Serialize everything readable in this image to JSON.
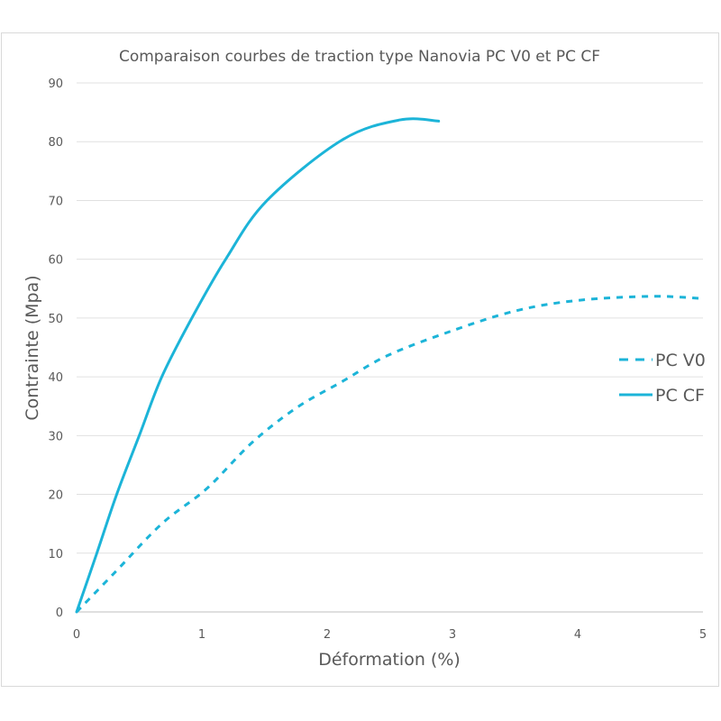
{
  "chart_data": {
    "type": "line",
    "title": "Comparaison courbes de traction type Nanovia PC V0 et PC CF",
    "xlabel": "Déformation (%)",
    "ylabel": "Contrainte  (Mpa)",
    "xlim": [
      0,
      5
    ],
    "ylim": [
      0,
      90
    ],
    "xticks": [
      "0",
      "1",
      "2",
      "3",
      "4",
      "5"
    ],
    "yticks": [
      "0",
      "10",
      "20",
      "30",
      "40",
      "50",
      "60",
      "70",
      "80",
      "90"
    ],
    "grid": "horizontal",
    "legend_position": "right",
    "color": "#1cb4d8",
    "series": [
      {
        "name": "PC V0",
        "style": "dashed",
        "x": [
          0,
          0.3,
          0.68,
          1.04,
          1.4,
          1.76,
          2.12,
          2.48,
          2.98,
          3.5,
          4.0,
          4.6,
          5.0
        ],
        "y": [
          0,
          6.6,
          15,
          21,
          28.8,
          34.8,
          39.2,
          43.6,
          47.7,
          51.2,
          53.0,
          53.7,
          53.3
        ]
      },
      {
        "name": "PC CF",
        "style": "solid",
        "x": [
          0,
          0.16,
          0.32,
          0.5,
          0.68,
          0.92,
          1.19,
          1.52,
          2.12,
          2.58,
          2.89
        ],
        "y": [
          0,
          9.9,
          20,
          30,
          40,
          50,
          60,
          70,
          80.3,
          83.7,
          83.5
        ]
      }
    ]
  }
}
